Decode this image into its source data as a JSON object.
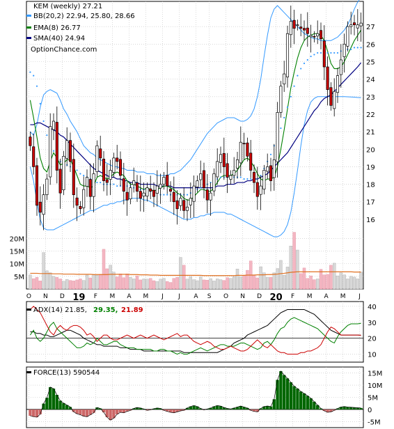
{
  "chart_data": [
    {
      "type": "candlestick",
      "title": "KEM (weekly) 27.21",
      "watermark": "OptionChance.com",
      "legend": [
        {
          "label": "BB(20,2) 22.94, 25.80, 28.66",
          "color": "#3399ff"
        },
        {
          "label": "EMA(8) 26.77",
          "color": "#008000"
        },
        {
          "label": "SMA(40) 24.94",
          "color": "#000080"
        }
      ],
      "x_tick_labels": [
        "O",
        "N",
        "D",
        "19",
        "F",
        "M",
        "A",
        "M",
        "J",
        "J",
        "A",
        "S",
        "O",
        "N",
        "D",
        "20",
        "F",
        "M",
        "A",
        "M",
        "J"
      ],
      "y_ticks": [
        16,
        17,
        18,
        19,
        20,
        21,
        22,
        23,
        24,
        25,
        26,
        27
      ],
      "ylim": [
        15.2,
        28.2
      ],
      "volume_ticks": [
        "5M",
        "10M",
        "15M",
        "20M"
      ],
      "close_series": [
        20.2,
        19.0,
        16.8,
        16.4,
        17.4,
        18.3,
        21.3,
        21.6,
        18.8,
        17.5,
        19.6,
        20.5,
        19.3,
        17.4,
        16.8,
        16.6,
        17.7,
        18.4,
        17.3,
        18.6,
        20.2,
        19.5,
        18.2,
        18.1,
        18.8,
        19.5,
        19.3,
        18.5,
        17.6,
        17.1,
        17.8,
        18.2,
        17.6,
        17.2,
        17.5,
        17.8,
        17.6,
        17.3,
        17.9,
        18.0,
        18.4,
        17.9,
        17.6,
        17.0,
        16.6,
        17.2,
        16.5,
        16.7,
        17.2,
        17.9,
        18.2,
        18.6,
        17.8,
        17.1,
        17.5,
        18.6,
        19.3,
        19.7,
        19.0,
        18.4,
        18.5,
        18.8,
        19.4,
        20.4,
        20.3,
        19.6,
        18.8,
        18.1,
        17.3,
        17.9,
        18.8,
        19.0,
        18.2,
        19.4,
        22.1,
        23.6,
        24.3,
        26.6,
        27.3,
        26.9,
        27.1,
        26.9,
        26.8,
        26.6,
        26.5,
        26.4,
        26.6,
        26.3,
        24.7,
        23.4,
        22.5,
        23.3,
        24.2,
        25.1,
        26.0,
        27.0,
        27.1,
        27.1,
        27.1,
        27.2
      ],
      "ema8_series": [
        22.8,
        21.8,
        20.7,
        19.5,
        18.9,
        18.7,
        19.3,
        19.8,
        19.5,
        19.1,
        19.2,
        19.4,
        19.4,
        19.0,
        18.5,
        18.0,
        17.9,
        17.9,
        17.8,
        17.9,
        18.4,
        18.5,
        18.4,
        18.3,
        18.4,
        18.6,
        18.7,
        18.6,
        18.5,
        18.2,
        18.0,
        18.0,
        17.9,
        17.8,
        17.7,
        17.8,
        17.7,
        17.6,
        17.7,
        17.8,
        17.9,
        17.9,
        17.8,
        17.7,
        17.5,
        17.4,
        17.2,
        17.1,
        17.1,
        17.3,
        17.5,
        17.7,
        17.7,
        17.6,
        17.6,
        17.8,
        18.1,
        18.4,
        18.5,
        18.5,
        18.5,
        18.6,
        18.8,
        19.1,
        19.4,
        19.5,
        19.3,
        19.0,
        18.6,
        18.3,
        18.2,
        18.3,
        18.3,
        18.4,
        19.0,
        20.0,
        21.1,
        22.3,
        23.5,
        24.4,
        25.2,
        25.8,
        26.2,
        26.4,
        26.5,
        26.6,
        26.6,
        26.5,
        26.2,
        25.6,
        24.9,
        24.6,
        24.6,
        24.7,
        25.0,
        25.4,
        25.8,
        26.2,
        26.5,
        26.8
      ],
      "sma40_series": [
        21.4,
        21.4,
        21.5,
        21.5,
        21.4,
        21.3,
        21.2,
        21.1,
        21.0,
        20.8,
        20.7,
        20.5,
        20.3,
        20.1,
        19.9,
        19.7,
        19.5,
        19.3,
        19.1,
        18.9,
        18.8,
        18.7,
        18.6,
        18.5,
        18.4,
        18.4,
        18.3,
        18.3,
        18.2,
        18.2,
        18.1,
        18.1,
        18.1,
        18.0,
        18.0,
        18.0,
        18.0,
        18.0,
        17.9,
        17.9,
        17.9,
        17.9,
        17.9,
        17.8,
        17.8,
        17.8,
        17.8,
        17.8,
        17.8,
        17.8,
        17.8,
        17.8,
        17.8,
        17.8,
        17.8,
        17.8,
        17.9,
        17.9,
        17.9,
        18.0,
        18.0,
        18.0,
        18.1,
        18.1,
        18.1,
        18.2,
        18.2,
        18.3,
        18.3,
        18.4,
        18.5,
        18.6,
        18.8,
        19.0,
        19.2,
        19.4,
        19.6,
        19.8,
        20.1,
        20.4,
        20.7,
        21.0,
        21.3,
        21.6,
        21.9,
        22.2,
        22.4,
        22.7,
        22.9,
        23.0,
        23.1,
        23.3,
        23.5,
        23.7,
        23.9,
        24.1,
        24.3,
        24.5,
        24.7,
        24.94
      ],
      "bb_upper_series": [
        21.0,
        20.8,
        21.4,
        22.4,
        23.1,
        23.3,
        23.4,
        23.3,
        23.2,
        22.8,
        22.3,
        22.0,
        21.6,
        21.3,
        21.0,
        20.6,
        20.2,
        20.0,
        19.8,
        19.7,
        19.5,
        19.4,
        19.3,
        19.2,
        19.1,
        19.0,
        19.0,
        18.9,
        18.9,
        18.8,
        18.8,
        18.8,
        18.7,
        18.7,
        18.7,
        18.6,
        18.6,
        18.6,
        18.5,
        18.5,
        18.5,
        18.5,
        18.6,
        18.6,
        18.7,
        18.8,
        19.0,
        19.2,
        19.4,
        19.7,
        20.0,
        20.3,
        20.6,
        20.9,
        21.1,
        21.3,
        21.5,
        21.6,
        21.7,
        21.8,
        21.8,
        21.8,
        21.7,
        21.6,
        21.6,
        21.7,
        21.9,
        22.3,
        23.0,
        24.0,
        25.3,
        26.5,
        27.5,
        28.0,
        28.2,
        28.0,
        27.8,
        27.6,
        27.4,
        27.2,
        27.0,
        26.8,
        26.6,
        26.5,
        26.4,
        26.3,
        26.3,
        26.2,
        26.2,
        26.2,
        26.2,
        26.3,
        26.4,
        26.6,
        26.8,
        27.1,
        27.5,
        28.0,
        28.4,
        28.66
      ],
      "bb_lower_series": [
        19.0,
        18.2,
        17.0,
        16.0,
        15.5,
        15.4,
        15.4,
        15.4,
        15.5,
        15.6,
        15.7,
        15.8,
        15.9,
        16.0,
        16.1,
        16.2,
        16.3,
        16.4,
        16.5,
        16.5,
        16.6,
        16.7,
        16.8,
        16.8,
        16.9,
        16.9,
        17.0,
        17.0,
        17.1,
        17.1,
        17.2,
        17.2,
        17.2,
        17.2,
        17.1,
        17.1,
        17.0,
        16.9,
        16.8,
        16.7,
        16.6,
        16.5,
        16.4,
        16.3,
        16.2,
        16.1,
        16.0,
        16.0,
        16.0,
        16.1,
        16.1,
        16.2,
        16.2,
        16.3,
        16.3,
        16.4,
        16.4,
        16.4,
        16.4,
        16.3,
        16.3,
        16.2,
        16.1,
        16.0,
        15.9,
        15.8,
        15.7,
        15.6,
        15.5,
        15.4,
        15.3,
        15.2,
        15.1,
        15.0,
        15.0,
        15.1,
        15.3,
        15.7,
        16.4,
        17.5,
        18.8,
        20.2,
        21.4,
        22.2,
        22.7,
        22.9,
        23.0,
        23.0,
        23.0,
        23.0,
        23.0,
        23.0,
        23.0,
        23.0,
        23.0,
        22.99,
        22.98,
        22.97,
        22.95,
        22.94
      ],
      "bb_mid_series": [
        24.4,
        24.2,
        23.6,
        22.6,
        21.6,
        20.8,
        20.2,
        19.9,
        19.6,
        19.3,
        19.2,
        19.1,
        19.0,
        18.9,
        18.8,
        18.6,
        18.5,
        18.4,
        18.3,
        18.2,
        18.1,
        18.1,
        18.0,
        18.0,
        18.0,
        18.0,
        17.9,
        17.9,
        17.9,
        17.9,
        17.9,
        17.8,
        17.8,
        17.7,
        17.7,
        17.6,
        17.6,
        17.5,
        17.5,
        17.4,
        17.4,
        17.4,
        17.4,
        17.4,
        17.4,
        17.4,
        17.4,
        17.4,
        17.5,
        17.6,
        17.7,
        17.8,
        17.9,
        18.0,
        18.1,
        18.2,
        18.3,
        18.4,
        18.4,
        18.4,
        18.4,
        18.4,
        18.4,
        18.4,
        18.3,
        18.3,
        18.3,
        18.3,
        18.3,
        18.5,
        18.9,
        19.3,
        19.7,
        20.2,
        20.7,
        21.2,
        21.8,
        22.4,
        23.0,
        23.6,
        24.2,
        24.6,
        24.9,
        25.1,
        25.3,
        25.4,
        25.5,
        25.5,
        25.5,
        25.5,
        25.5,
        25.5,
        25.5,
        25.6,
        25.6,
        25.7,
        25.7,
        25.8,
        25.8,
        25.8
      ],
      "volume_series": [
        5.6,
        4.1,
        4.6,
        3.2,
        14.4,
        7.2,
        6.4,
        5.0,
        4.6,
        4.0,
        3.1,
        3.8,
        3.4,
        3.2,
        3.6,
        4.0,
        3.4,
        5.5,
        4.4,
        5.6,
        5.4,
        5.8,
        15.7,
        8.0,
        9.4,
        6.7,
        4.8,
        6.0,
        4.5,
        6.0,
        4.6,
        4.0,
        5.2,
        3.6,
        4.0,
        3.9,
        4.2,
        3.3,
        3.0,
        3.9,
        4.2,
        3.0,
        2.6,
        4.2,
        4.6,
        12.5,
        9.4,
        3.9,
        4.9,
        3.7,
        3.3,
        4.8,
        3.6,
        3.5,
        4.1,
        3.2,
        4.0,
        3.7,
        3.4,
        4.5,
        4.2,
        4.9,
        7.9,
        4.8,
        5.3,
        7.4,
        11.1,
        5.6,
        4.4,
        8.8,
        6.4,
        4.6,
        4.6,
        6.4,
        8.1,
        11.3,
        5.5,
        8.7,
        17.0,
        22.4,
        15.4,
        6.1,
        8.3,
        4.2,
        5.2,
        3.7,
        4.0,
        7.8,
        5.6,
        5.8,
        9.4,
        10.2,
        5.2,
        6.4,
        5.6,
        4.0,
        5.0,
        4.7,
        4.0,
        6.7
      ],
      "volume_sma_series": [
        6.2,
        6.2,
        6.2,
        6.1,
        6.1,
        6.1,
        6.1,
        6.0,
        6.0,
        6.0,
        5.9,
        5.9,
        5.9,
        5.9,
        5.8,
        5.8,
        5.8,
        5.8,
        5.8,
        5.7,
        5.7,
        5.7,
        5.7,
        5.7,
        5.8,
        5.8,
        5.8,
        5.8,
        5.8,
        5.8,
        5.7,
        5.7,
        5.7,
        5.6,
        5.6,
        5.6,
        5.5,
        5.5,
        5.5,
        5.4,
        5.4,
        5.4,
        5.4,
        5.4,
        5.4,
        5.4,
        5.4,
        5.4,
        5.4,
        5.4,
        5.4,
        5.4,
        5.3,
        5.3,
        5.3,
        5.3,
        5.3,
        5.3,
        5.3,
        5.3,
        5.3,
        5.3,
        5.4,
        5.4,
        5.4,
        5.5,
        5.5,
        5.5,
        5.6,
        5.6,
        5.6,
        5.7,
        5.7,
        5.8,
        5.9,
        6.1,
        6.2,
        6.4,
        6.6,
        6.7,
        6.8,
        6.8,
        6.8,
        6.8,
        6.8,
        6.8,
        6.8,
        6.8,
        6.8,
        6.8,
        6.8,
        6.8,
        6.8,
        6.8,
        6.8,
        6.8,
        6.8,
        6.7,
        6.7,
        6.7
      ]
    },
    {
      "type": "line",
      "title": "ADX(14) 21.85,",
      "plus_di_label": "29.35,",
      "minus_di_label": "21.89",
      "y_ticks": [
        10,
        20,
        30,
        40
      ],
      "ylim": [
        5,
        43
      ],
      "series": [
        {
          "name": "ADX",
          "color": "#000000",
          "values": [
            24,
            24,
            23,
            23,
            22,
            22,
            21,
            21,
            22,
            23,
            24,
            25,
            25,
            24,
            23,
            22,
            20,
            19,
            18,
            17,
            16,
            16,
            15,
            15,
            15,
            15,
            15,
            14,
            14,
            14,
            13,
            13,
            13,
            13,
            12,
            12,
            12,
            12,
            12,
            12,
            12,
            12,
            12,
            12,
            12,
            12,
            11,
            11,
            11,
            11,
            11,
            11,
            11,
            11,
            11,
            11,
            11,
            12,
            13,
            14,
            15,
            17,
            18,
            19,
            20,
            22,
            23,
            24,
            25,
            26,
            27,
            28,
            30,
            32,
            34,
            36,
            37,
            38,
            38,
            38,
            38,
            38,
            38,
            37,
            36,
            35,
            33,
            31,
            29,
            27,
            25,
            24,
            23,
            22,
            22,
            22,
            22,
            22,
            22,
            21.85
          ]
        },
        {
          "name": "+DI",
          "color": "#008000",
          "values": [
            22,
            25,
            20,
            18,
            20,
            24,
            28,
            30,
            26,
            24,
            22,
            20,
            18,
            16,
            14,
            14,
            15,
            17,
            16,
            17,
            20,
            18,
            16,
            16,
            17,
            18,
            18,
            16,
            15,
            14,
            14,
            14,
            13,
            13,
            13,
            13,
            13,
            12,
            12,
            13,
            13,
            12,
            12,
            11,
            10,
            11,
            10,
            10,
            11,
            12,
            13,
            14,
            13,
            12,
            13,
            14,
            15,
            16,
            16,
            15,
            15,
            15,
            16,
            17,
            17,
            16,
            15,
            14,
            13,
            14,
            17,
            18,
            16,
            19,
            23,
            26,
            27,
            30,
            32,
            33,
            32,
            31,
            30,
            29,
            28,
            27,
            26,
            24,
            22,
            20,
            18,
            17,
            21,
            24,
            26,
            28,
            29,
            29,
            29,
            29.35
          ]
        },
        {
          "name": "-DI",
          "color": "#cc0000",
          "values": [
            38,
            40,
            38,
            36,
            32,
            28,
            24,
            22,
            26,
            28,
            26,
            25,
            27,
            28,
            28,
            27,
            25,
            22,
            23,
            21,
            18,
            20,
            22,
            22,
            20,
            19,
            19,
            20,
            21,
            22,
            21,
            20,
            21,
            22,
            21,
            20,
            21,
            22,
            21,
            20,
            19,
            20,
            21,
            22,
            23,
            21,
            22,
            22,
            20,
            18,
            17,
            16,
            17,
            18,
            17,
            15,
            14,
            13,
            13,
            14,
            15,
            14,
            13,
            12,
            12,
            13,
            15,
            17,
            19,
            17,
            15,
            14,
            16,
            14,
            12,
            11,
            11,
            10,
            10,
            10,
            10,
            11,
            11,
            12,
            12,
            13,
            14,
            16,
            20,
            24,
            27,
            26,
            24,
            22,
            22,
            22,
            22,
            22,
            22,
            21.89
          ]
        }
      ]
    },
    {
      "type": "bar",
      "title": "FORCE(13) 590544",
      "y_ticks": [
        "-5M",
        "0",
        "5M",
        "10M",
        "15M"
      ],
      "ylim": [
        -7.5,
        17.5
      ],
      "values": [
        -2.6,
        -3.0,
        -3.2,
        -2.0,
        2.4,
        4.8,
        9.2,
        8.6,
        6.0,
        3.6,
        2.6,
        1.8,
        1.0,
        -1.0,
        -1.8,
        -2.2,
        -2.8,
        -3.0,
        -2.2,
        -1.4,
        0.8,
        0.4,
        -1.2,
        -3.2,
        -4.4,
        -3.6,
        -2.0,
        -1.2,
        -1.4,
        -0.8,
        -0.4,
        0.4,
        0.8,
        0.6,
        0.2,
        -0.4,
        -0.2,
        0.3,
        0.6,
        0.4,
        -0.4,
        -0.8,
        -1.2,
        -1.4,
        -1.0,
        -0.6,
        -0.4,
        0.6,
        1.2,
        1.6,
        1.2,
        0.4,
        -0.2,
        0.2,
        0.6,
        1.2,
        1.6,
        1.4,
        0.8,
        0.4,
        0.2,
        0.6,
        1.0,
        1.4,
        1.0,
        0.6,
        -0.4,
        -0.8,
        -1.0,
        0.4,
        1.2,
        1.4,
        1.2,
        4.2,
        12.2,
        15.8,
        14.2,
        12.8,
        11.2,
        9.6,
        8.6,
        7.4,
        6.6,
        5.6,
        4.6,
        3.2,
        1.8,
        0.4,
        -0.6,
        -1.2,
        -1.0,
        -0.4,
        0.4,
        1.0,
        1.2,
        1.0,
        0.9,
        0.8,
        0.7,
        0.59
      ]
    }
  ],
  "colors": {
    "up_candle": "#008000",
    "down_candle": "#cc0000",
    "bb_band": "#3399ff",
    "ema": "#008000",
    "sma": "#000080",
    "volume_up": "#d8d8d8",
    "volume_down": "#f4b6c2",
    "volume_avg": "#e07020",
    "force_up": "#006600",
    "force_down": "#cc6666",
    "grid": "#c0c0c0"
  }
}
